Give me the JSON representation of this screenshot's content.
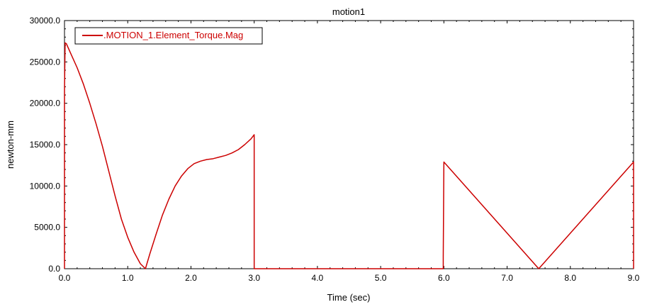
{
  "chart_data": {
    "type": "line",
    "title": "motion1",
    "xlabel": "Time (sec)",
    "ylabel": "newton-mm",
    "xlim": [
      0,
      9
    ],
    "ylim": [
      0,
      30000
    ],
    "x_ticks": [
      0,
      1,
      2,
      3,
      4,
      5,
      6,
      7,
      8,
      9
    ],
    "x_tick_labels": [
      "0.0",
      "1.0",
      "2.0",
      "3.0",
      "4.0",
      "5.0",
      "6.0",
      "7.0",
      "8.0",
      "9.0"
    ],
    "y_ticks": [
      0,
      5000,
      10000,
      15000,
      20000,
      25000,
      30000
    ],
    "y_tick_labels": [
      "0.0",
      "5000.0",
      "10000.0",
      "15000.0",
      "20000.0",
      "25000.0",
      "30000.0"
    ],
    "grid": false,
    "legend_position": "top-left",
    "colors": {
      "series": "#cc0000",
      "axis": "#000000",
      "background": "#ffffff"
    },
    "series": [
      {
        "name": ".MOTION_1.Element_Torque.Mag",
        "points": [
          [
            0.0,
            0
          ],
          [
            0.0,
            21500
          ],
          [
            0.01,
            27300
          ],
          [
            0.03,
            27200
          ],
          [
            0.1,
            26000
          ],
          [
            0.2,
            24300
          ],
          [
            0.3,
            22300
          ],
          [
            0.4,
            20000
          ],
          [
            0.5,
            17500
          ],
          [
            0.6,
            14800
          ],
          [
            0.7,
            11800
          ],
          [
            0.8,
            8800
          ],
          [
            0.9,
            6000
          ],
          [
            1.0,
            3800
          ],
          [
            1.1,
            2000
          ],
          [
            1.2,
            600
          ],
          [
            1.28,
            0
          ],
          [
            1.35,
            1800
          ],
          [
            1.45,
            4200
          ],
          [
            1.55,
            6500
          ],
          [
            1.65,
            8400
          ],
          [
            1.75,
            10000
          ],
          [
            1.85,
            11200
          ],
          [
            1.95,
            12100
          ],
          [
            2.05,
            12700
          ],
          [
            2.15,
            13000
          ],
          [
            2.25,
            13200
          ],
          [
            2.35,
            13300
          ],
          [
            2.45,
            13500
          ],
          [
            2.55,
            13700
          ],
          [
            2.65,
            14000
          ],
          [
            2.75,
            14400
          ],
          [
            2.85,
            15000
          ],
          [
            2.95,
            15700
          ],
          [
            3.0,
            16200
          ],
          [
            3.0,
            0
          ],
          [
            5.99,
            0
          ],
          [
            5.99,
            1400
          ],
          [
            6.0,
            12900
          ],
          [
            7.5,
            0
          ],
          [
            9.0,
            12900
          ],
          [
            9.0,
            10400
          ],
          [
            9.01,
            0
          ]
        ]
      }
    ]
  }
}
